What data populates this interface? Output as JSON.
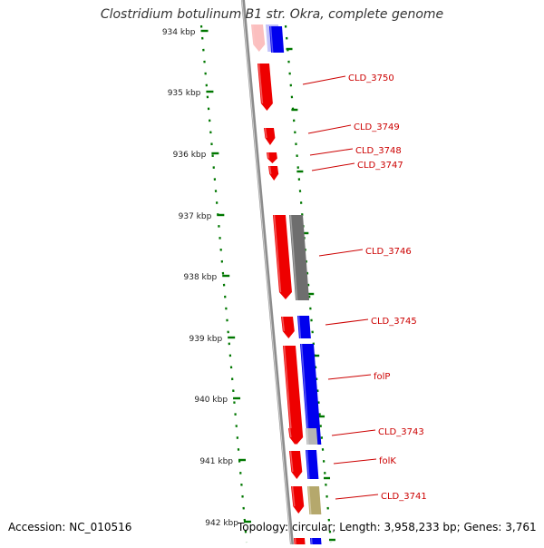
{
  "header": {
    "title": "Clostridium botulinum B1 str. Okra, complete genome"
  },
  "footer": {
    "accession": "Accession: NC_010516",
    "stats": "Topology: circular; Length: 3,958,233 bp; Genes: 3,761"
  },
  "ruler": {
    "ticks": [
      "934 kbp",
      "935 kbp",
      "936 kbp",
      "937 kbp",
      "938 kbp",
      "939 kbp",
      "940 kbp",
      "941 kbp",
      "942 kbp"
    ]
  },
  "features": [
    {
      "label": "CLD_3750"
    },
    {
      "label": "CLD_3749"
    },
    {
      "label": "CLD_3748"
    },
    {
      "label": "CLD_3747"
    },
    {
      "label": "CLD_3746"
    },
    {
      "label": "CLD_3745"
    },
    {
      "label": "folP"
    },
    {
      "label": "CLD_3743"
    },
    {
      "label": "folK"
    },
    {
      "label": "CLD_3741"
    }
  ],
  "colors": {
    "gene": "#ee0000",
    "cds_blue": "#0000ee",
    "cds_grey": "#6e6e6e",
    "cds_lightgrey": "#b4b4b4",
    "cds_olive": "#b5a86c",
    "backbone": "#8c8c8c",
    "ruler": "#007700",
    "label": "#cc0000"
  }
}
